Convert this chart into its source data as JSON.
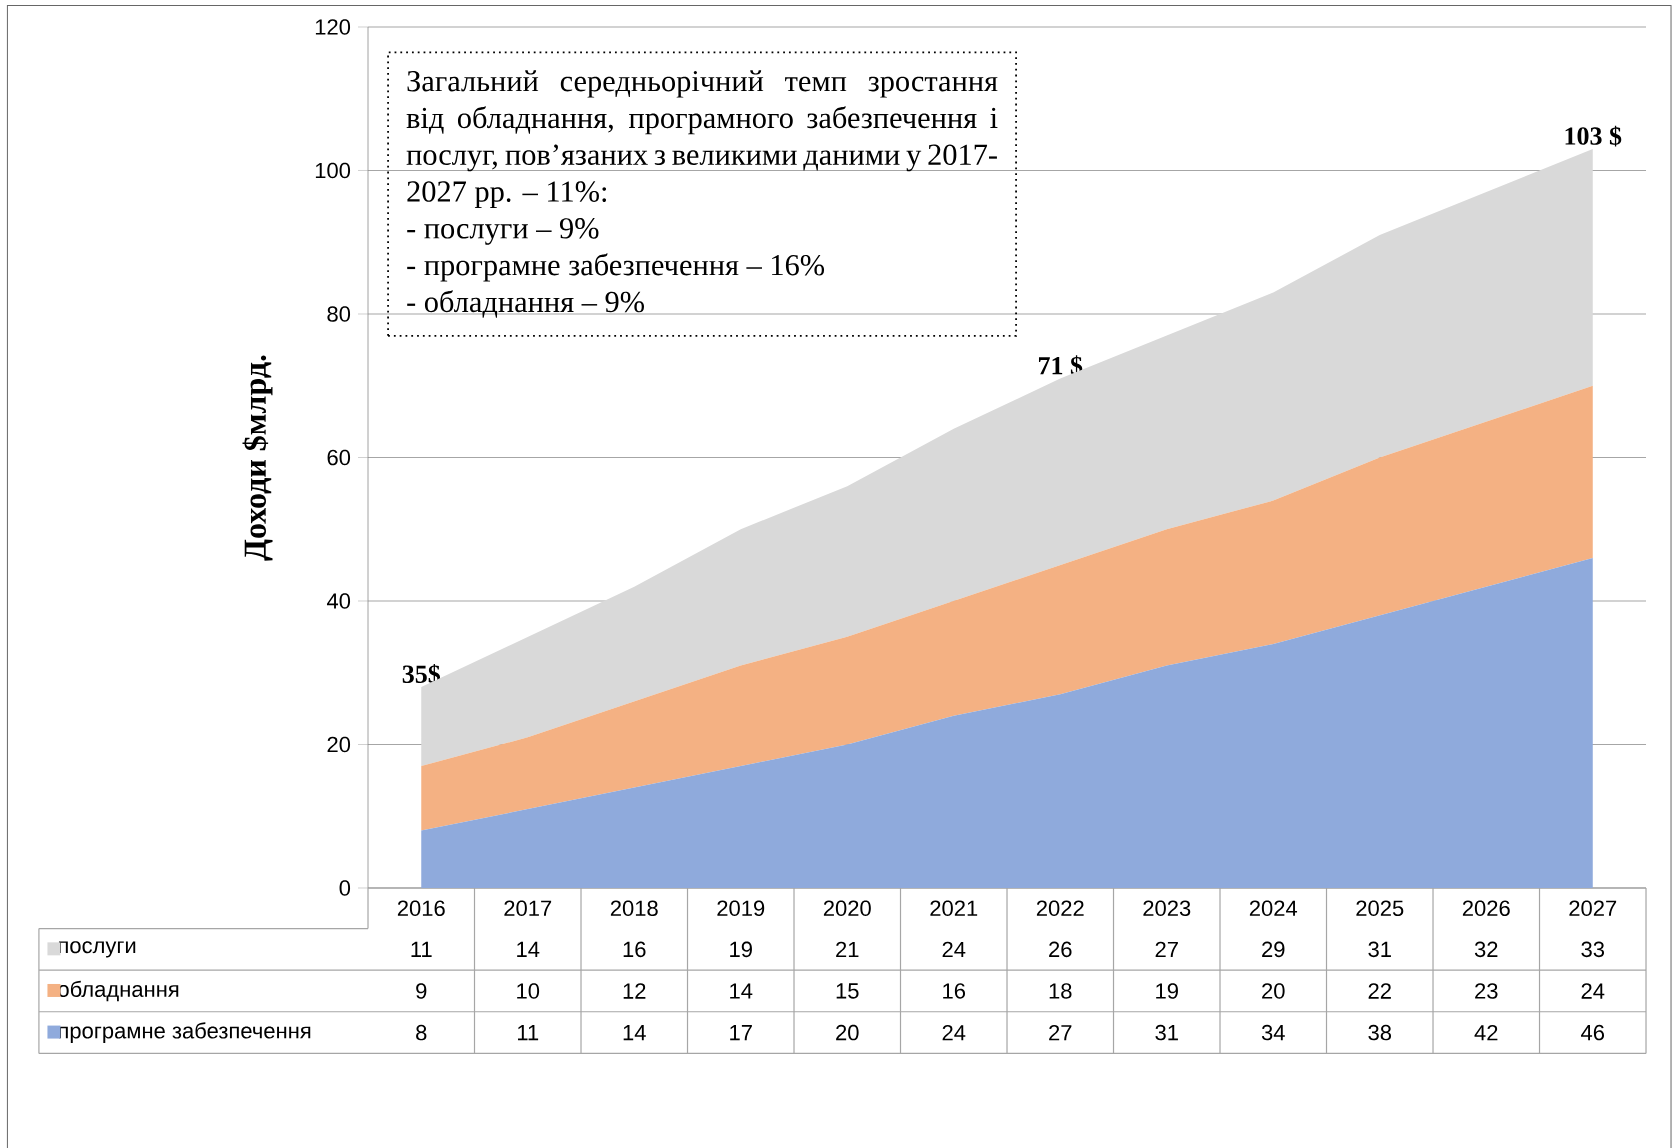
{
  "chart_data": {
    "type": "area",
    "stacked": true,
    "ylabel": "Доходи $млрд.",
    "categories": [
      "2016",
      "2017",
      "2018",
      "2019",
      "2020",
      "2021",
      "2022",
      "2023",
      "2024",
      "2025",
      "2026",
      "2027"
    ],
    "series": [
      {
        "name": "програмне забезпечення",
        "color": "#8faadc",
        "values": [
          8,
          11,
          14,
          17,
          20,
          24,
          27,
          31,
          34,
          38,
          42,
          46
        ]
      },
      {
        "name": "обладнання",
        "color": "#f4b183",
        "values": [
          9,
          10,
          12,
          14,
          15,
          16,
          18,
          19,
          20,
          22,
          23,
          24
        ]
      },
      {
        "name": "послуги",
        "color": "#d9d9d9",
        "values": [
          11,
          14,
          16,
          19,
          21,
          24,
          26,
          27,
          29,
          31,
          32,
          33
        ]
      }
    ],
    "ylim": [
      0,
      120
    ],
    "yticks": [
      0,
      20,
      40,
      60,
      80,
      100,
      120
    ],
    "grid": "y",
    "legend": "bottom",
    "data_labels": true,
    "annotations": [
      "Загальний середньорічний темп зростання від обладнання, програмного забезпечення і послуг, пов’язаних з великими даними у 2017-2027 рр. – 11%:",
      "- послуги – 9%",
      "- програмне забезпечення – 16%",
      "- обладнання – 9%",
      {
        "text": "35$",
        "x": "2016",
        "y": 28
      },
      {
        "text": "71 $",
        "x": "2022",
        "y": 71
      },
      {
        "text": "103 $",
        "x": "2027",
        "y": 103
      }
    ]
  }
}
